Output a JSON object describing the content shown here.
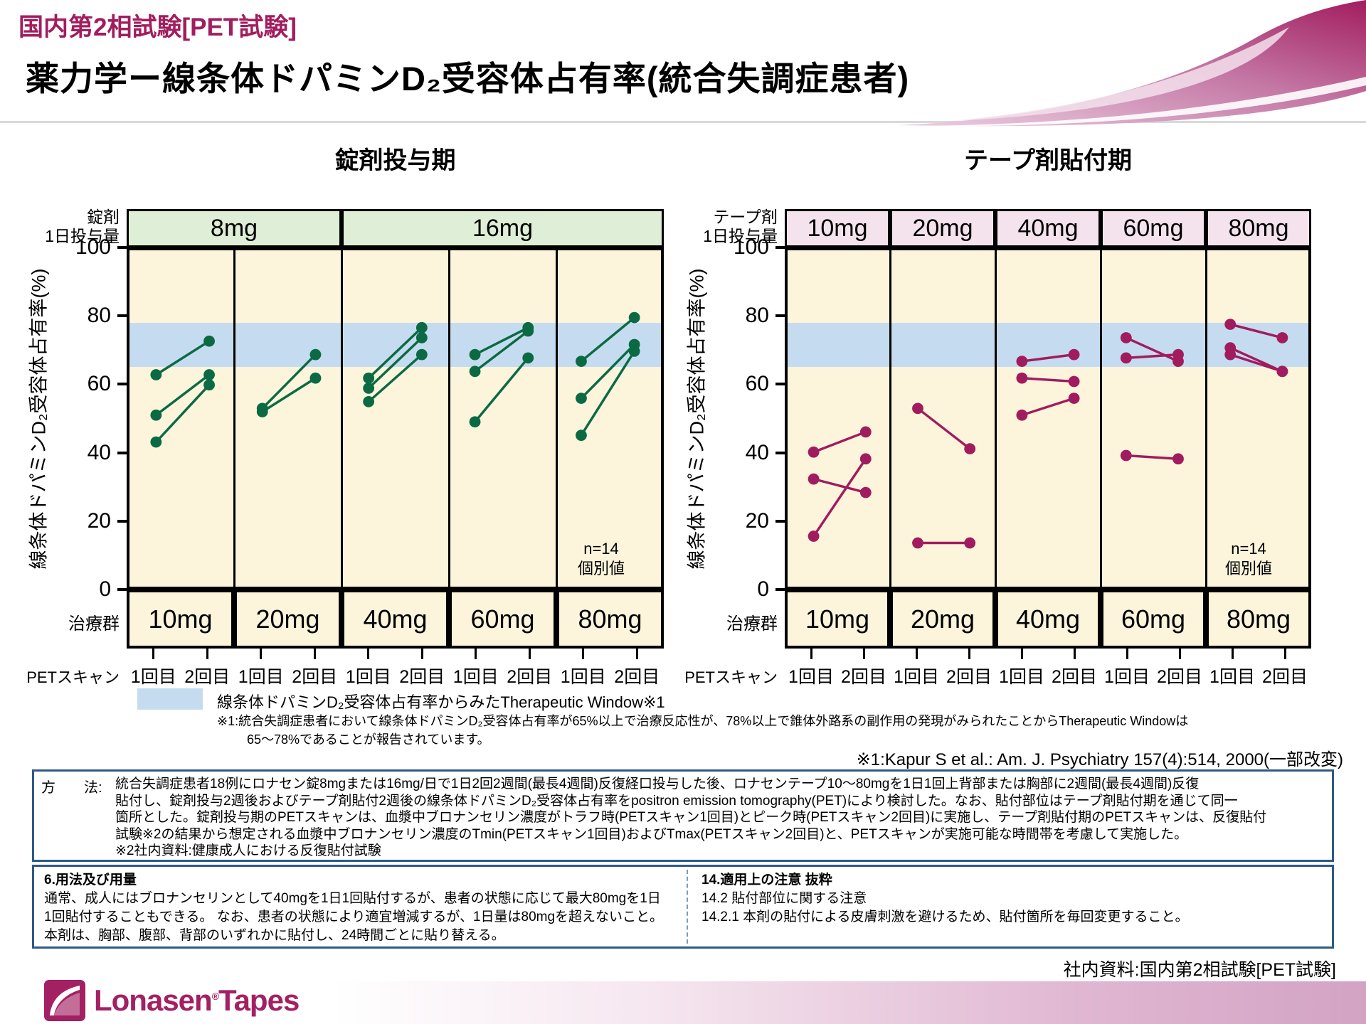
{
  "header": {
    "eyebrow": "国内第2相試験[PET試験]",
    "title": "薬力学ー線条体ドパミンD₂受容体占有率(統合失調症患者)",
    "accent_color": "#a21d5f"
  },
  "chart_data": [
    {
      "type": "line",
      "title": "錠剤投与期",
      "dose_row_label": [
        "錠剤",
        "1日投与量"
      ],
      "dose_groups": [
        {
          "label": "8mg",
          "span": 2
        },
        {
          "label": "16mg",
          "span": 3
        }
      ],
      "header_bg": "#dfeed6",
      "color": "#0b6a44",
      "ylabel": "線条体ドパミンD₂受容体占有率(%)",
      "yticks": [
        0,
        20,
        40,
        60,
        80,
        100
      ],
      "ylim": [
        0,
        100
      ],
      "therapeutic_window": [
        65,
        78
      ],
      "treatment_row_label": "治療群",
      "scan_row_label": "PETスキャン",
      "scan_labels": [
        "1回目",
        "2回目"
      ],
      "n_note": [
        "n=14",
        "個別値"
      ],
      "panels": [
        {
          "treatment": "10mg",
          "dose_group": "8mg",
          "pairs": [
            [
              63,
              73
            ],
            [
              51,
              63
            ],
            [
              43,
              60
            ]
          ]
        },
        {
          "treatment": "20mg",
          "dose_group": "8mg",
          "pairs": [
            [
              53,
              69
            ],
            [
              52,
              62
            ]
          ]
        },
        {
          "treatment": "40mg",
          "dose_group": "16mg",
          "pairs": [
            [
              62,
              77
            ],
            [
              59,
              74
            ],
            [
              55,
              69
            ]
          ]
        },
        {
          "treatment": "60mg",
          "dose_group": "16mg",
          "pairs": [
            [
              69,
              77
            ],
            [
              64,
              76
            ],
            [
              49,
              68
            ]
          ]
        },
        {
          "treatment": "80mg",
          "dose_group": "16mg",
          "pairs": [
            [
              67,
              80
            ],
            [
              56,
              72
            ],
            [
              45,
              70
            ]
          ]
        }
      ]
    },
    {
      "type": "line",
      "title": "テープ剤貼付期",
      "dose_row_label": [
        "テープ剤",
        "1日投与量"
      ],
      "dose_groups": [
        {
          "label": "10mg",
          "span": 1
        },
        {
          "label": "20mg",
          "span": 1
        },
        {
          "label": "40mg",
          "span": 1
        },
        {
          "label": "60mg",
          "span": 1
        },
        {
          "label": "80mg",
          "span": 1
        }
      ],
      "header_bg": "#f4e3ed",
      "color": "#a11c5e",
      "ylabel": "線条体ドパミンD₂受容体占有率(%)",
      "yticks": [
        0,
        20,
        40,
        60,
        80,
        100
      ],
      "ylim": [
        0,
        100
      ],
      "therapeutic_window": [
        65,
        78
      ],
      "treatment_row_label": "治療群",
      "scan_row_label": "PETスキャン",
      "scan_labels": [
        "1回目",
        "2回目"
      ],
      "n_note": [
        "n=14",
        "個別値"
      ],
      "panels": [
        {
          "treatment": "10mg",
          "dose_group": "10mg",
          "pairs": [
            [
              40,
              46
            ],
            [
              32,
              28
            ],
            [
              15,
              38
            ]
          ]
        },
        {
          "treatment": "20mg",
          "dose_group": "20mg",
          "pairs": [
            [
              53,
              41
            ],
            [
              13,
              13
            ]
          ]
        },
        {
          "treatment": "40mg",
          "dose_group": "40mg",
          "pairs": [
            [
              67,
              69
            ],
            [
              62,
              61
            ],
            [
              51,
              56
            ]
          ]
        },
        {
          "treatment": "60mg",
          "dose_group": "60mg",
          "pairs": [
            [
              74,
              67
            ],
            [
              68,
              69
            ],
            [
              39,
              38
            ]
          ]
        },
        {
          "treatment": "80mg",
          "dose_group": "80mg",
          "pairs": [
            [
              78,
              74
            ],
            [
              71,
              64
            ],
            [
              69,
              64
            ]
          ]
        }
      ]
    }
  ],
  "legend": {
    "swatch_color": "#c5dcf0",
    "text": "線条体ドパミンD₂受容体占有率からみたTherapeutic Window※1",
    "note_line1": "※1:統合失調症患者において線条体ドパミンD₂受容体占有率が65%以上で治療反応性が、78%以上で錐体外路系の副作用の発現がみられたことからTherapeutic Windowは",
    "note_line2": "65〜78%であることが報告されています。",
    "citation": "※1:Kapur S et al.: Am. J. Psychiatry 157(4):514, 2000(一部改変)"
  },
  "method_box": {
    "label": "方　　法:",
    "lines": [
      "統合失調症患者18例にロナセン錠8mgまたは16mg/日で1日2回2週間(最長4週間)反復経口投与した後、ロナセンテープ10〜80mgを1日1回上背部または胸部に2週間(最長4週間)反復",
      "貼付し、錠剤投与2週後およびテープ剤貼付2週後の線条体ドパミンD₂受容体占有率をpositron emission tomography(PET)により検討した。なお、貼付部位はテープ剤貼付期を通じて同一",
      "箇所とした。錠剤投与期のPETスキャンは、血漿中ブロナンセリン濃度がトラフ時(PETスキャン1回目)とピーク時(PETスキャン2回目)に実施し、テープ剤貼付期のPETスキャンは、反復貼付",
      "試験※2の結果から想定される血漿中ブロナンセリン濃度のTmin(PETスキャン1回目)およびTmax(PETスキャン2回目)と、PETスキャンが実施可能な時間帯を考慮して実施した。",
      "※2社内資料:健康成人における反復貼付試験"
    ]
  },
  "dosage_box": {
    "title": "6.用法及び用量",
    "lines": [
      "通常、成人にはブロナンセリンとして40mgを1日1回貼付するが、患者の状態に応じて最大80mgを1日",
      "1回貼付することもできる。 なお、患者の状態により適宜増減するが、1日量は80mgを超えないこと。",
      "本剤は、胸部、腹部、背部のいずれかに貼付し、24時間ごとに貼り替える。"
    ]
  },
  "precaution_box": {
    "title": "14.適用上の注意 抜粋",
    "lines": [
      "14.2 貼付部位に関する注意",
      "14.2.1 本剤の貼付による皮膚刺激を避けるため、貼付箇所を毎回変更すること。"
    ]
  },
  "footer": {
    "source": "社内資料:国内第2相試験[PET試験]",
    "brand": "Lonasen",
    "reg_mark": "®",
    "brand2": "Tapes",
    "brand_color": "#a32063"
  }
}
